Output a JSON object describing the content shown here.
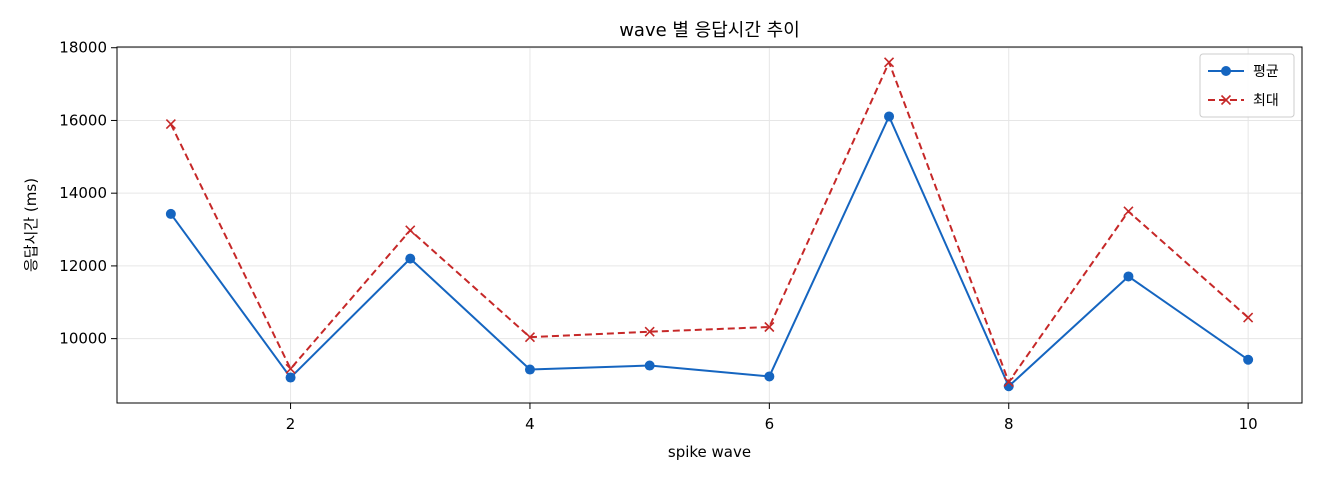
{
  "chart_data": {
    "type": "line",
    "title": "wave 별 응답시간 추이",
    "xlabel": "spike wave",
    "ylabel": "응답시간 (ms)",
    "x": [
      1,
      2,
      3,
      4,
      5,
      6,
      7,
      8,
      9,
      10
    ],
    "xlim": [
      0.55,
      10.45
    ],
    "ylim": [
      8230,
      18020
    ],
    "xticks": [
      2,
      4,
      6,
      8,
      10
    ],
    "yticks": [
      10000,
      12000,
      14000,
      16000,
      18000
    ],
    "grid": true,
    "legend_position": "top-right",
    "series": [
      {
        "name": "평균",
        "color": "#1565c0",
        "marker": "circle",
        "line_style": "solid",
        "values": [
          13430,
          8930,
          12200,
          9150,
          9260,
          8960,
          16110,
          8690,
          11710,
          9420
        ]
      },
      {
        "name": "최대",
        "color": "#c62828",
        "marker": "x",
        "line_style": "dashed",
        "values": [
          15900,
          9170,
          12980,
          10040,
          10190,
          10320,
          17600,
          8810,
          13500,
          10580
        ]
      }
    ]
  }
}
